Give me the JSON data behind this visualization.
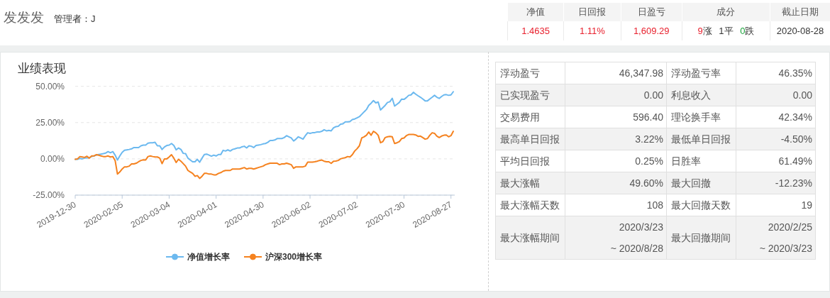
{
  "chart_data": [
    {
      "type": "other",
      "title": "发发发",
      "subtitle": "管理者：J",
      "categories": [
        "净值",
        "日回报",
        "日盈亏",
        "成分",
        "截止日期"
      ],
      "value_labels": [
        "1.4635",
        "1.11%",
        "1,609.29",
        "9涨 1平 0跌",
        "2020-08-28"
      ]
    },
    {
      "type": "line",
      "title": "业绩表现",
      "categories": [
        "2019-12-30",
        null,
        null,
        null,
        null,
        null,
        null,
        null,
        null,
        null,
        null,
        null,
        null,
        null,
        null,
        null,
        null,
        null,
        null,
        null,
        "2020-02-05",
        null,
        null,
        null,
        null,
        null,
        null,
        null,
        null,
        null,
        null,
        null,
        null,
        null,
        null,
        null,
        null,
        null,
        null,
        null,
        "2020-03-04",
        null,
        null,
        null,
        null,
        null,
        null,
        null,
        null,
        null,
        null,
        null,
        null,
        null,
        null,
        null,
        null,
        null,
        null,
        null,
        "2020-04-01",
        null,
        null,
        null,
        null,
        null,
        null,
        null,
        null,
        null,
        null,
        null,
        null,
        null,
        null,
        null,
        null,
        null,
        null,
        null,
        "2020-04-30",
        null,
        null,
        null,
        null,
        null,
        null,
        null,
        null,
        null,
        null,
        null,
        null,
        null,
        null,
        null,
        null,
        null,
        null,
        null,
        "2020-06-02",
        null,
        null,
        null,
        null,
        null,
        null,
        null,
        null,
        null,
        null,
        null,
        null,
        null,
        null,
        null,
        null,
        null,
        null,
        null,
        "2020-07-02",
        null,
        null,
        null,
        null,
        null,
        null,
        null,
        null,
        null,
        null,
        null,
        null,
        null,
        null,
        null,
        null,
        null,
        null,
        null,
        "2020-07-30",
        null,
        null,
        null,
        null,
        null,
        null,
        null,
        null,
        null,
        null,
        null,
        null,
        null,
        null,
        null,
        null,
        null,
        null,
        null,
        "2020-08-27",
        null
      ],
      "ylim": [
        -25,
        50
      ],
      "yticks": [
        {
          "value": -25,
          "label": "-25.00%"
        },
        {
          "value": 0,
          "label": "0.00%"
        },
        {
          "value": 25,
          "label": "25.00%"
        },
        {
          "value": 50,
          "label": "50.00%"
        }
      ],
      "grid": "y",
      "legend": "bottom",
      "series": [
        {
          "name": "净值增长率",
          "color": "#6cb9ef",
          "values": [
            -0.3,
            -0.3,
            0.3,
            0,
            0.5,
            0.7,
            0.8,
            1.6,
            2,
            2.6,
            3,
            3.3,
            3.6,
            4,
            5,
            4.2,
            5,
            2.6,
            -0.8,
            2,
            4.5,
            5.9,
            6.2,
            6.5,
            6.9,
            7.8,
            7.8,
            7.8,
            9,
            9.5,
            9.5,
            10.8,
            11.1,
            11.1,
            11.4,
            9,
            9,
            6.5,
            8.2,
            9.2,
            9.5,
            10.6,
            9.2,
            6.2,
            7.5,
            6.5,
            3.8,
            3.6,
            0.5,
            -0.8,
            -2,
            -2,
            -0.3,
            -2.3,
            0.5,
            3,
            3.3,
            2.6,
            1.8,
            2.6,
            2,
            3,
            3,
            5.9,
            5.4,
            6.2,
            5.4,
            6.5,
            6.9,
            7.5,
            7.5,
            8.3,
            8.7,
            7.5,
            9,
            8.7,
            7.8,
            9.2,
            9.5,
            9.8,
            10.3,
            10.6,
            11.4,
            12.7,
            12.7,
            13,
            14,
            14,
            14,
            14.7,
            16,
            15.2,
            14.4,
            12.3,
            13.6,
            15.2,
            14.4,
            13.6,
            16,
            18,
            17.6,
            18,
            18.1,
            18.5,
            18.5,
            19,
            20.1,
            19.3,
            19.6,
            19.3,
            21.4,
            22.2,
            22.5,
            23.9,
            24.2,
            25.5,
            25.5,
            25.8,
            27.1,
            27.5,
            28.3,
            29.1,
            30.7,
            32.4,
            34,
            36.9,
            38.4,
            40.2,
            38.6,
            39.2,
            33.7,
            35.3,
            36.9,
            38.9,
            39.4,
            41.8,
            36.4,
            37.6,
            38.9,
            41.2,
            41,
            42.2,
            43.8,
            44.1,
            45.9,
            44.6,
            43.5,
            42.5,
            41.3,
            40,
            40,
            41.3,
            42.5,
            43.8,
            42.5,
            41.7,
            43,
            44.1,
            44.3,
            43.8,
            44.1,
            46.3
          ]
        },
        {
          "name": "沪深300增长率",
          "color": "#f5821f",
          "values": [
            -0.3,
            0,
            1.6,
            1.3,
            1,
            1.8,
            0.5,
            2,
            2,
            2.9,
            2.5,
            2,
            1.6,
            1.6,
            2,
            1.3,
            1.6,
            -1.1,
            -10.5,
            -9,
            -7,
            -5.5,
            -5.5,
            -5,
            -3.5,
            -3.5,
            -3,
            -2,
            -1.1,
            -0.7,
            -0.8,
            1.6,
            2,
            1.6,
            1.3,
            1.3,
            0.5,
            -3.3,
            0,
            0,
            1.3,
            2.9,
            0.5,
            -2.5,
            -0.3,
            -1.6,
            -3.3,
            -5,
            -8,
            -9,
            -10,
            -12,
            -11.5,
            -13.5,
            -12,
            -10,
            -10,
            -10.5,
            -10.5,
            -11,
            -11,
            -10,
            -9.5,
            -8.5,
            -8,
            -8,
            -8,
            -7,
            -7,
            -7,
            -7,
            -6.5,
            -6,
            -7,
            -6.5,
            -6.5,
            -7,
            -6.5,
            -6,
            -5.5,
            -5,
            -4,
            -3.5,
            -3,
            -3,
            -3,
            -3,
            -4,
            -3.5,
            -3.5,
            -3,
            -3.5,
            -4,
            -6.5,
            -5.5,
            -5.5,
            -5.5,
            -5.5,
            -5,
            -2.3,
            -2.3,
            -2.3,
            -2,
            -1.6,
            -1.1,
            -0.8,
            -1.6,
            -2,
            -2,
            -3.1,
            -1.6,
            -1.5,
            -1.1,
            0,
            0.5,
            0.8,
            1.6,
            1.3,
            2.9,
            5.4,
            7,
            9,
            14.4,
            15.2,
            16.3,
            18.5,
            16.3,
            19,
            18,
            16.3,
            11.1,
            11.9,
            14.7,
            15.2,
            15.5,
            15.2,
            10.6,
            11.1,
            11.9,
            14,
            14.4,
            16,
            16.8,
            16.8,
            16.8,
            16.5,
            15.5,
            15.7,
            14.7,
            13.6,
            14,
            16.3,
            18,
            17.6,
            15.7,
            14.7,
            15.7,
            16.3,
            16.5,
            15.2,
            16,
            19
          ]
        }
      ]
    },
    {
      "type": "other",
      "categories": [
        "浮动盈亏",
        "浮动盈亏率",
        "已实现盈亏",
        "利息收入",
        "交易费用",
        "理论换手率",
        "最高单日回报",
        "最低单日回报",
        "平均日回报",
        "日胜率",
        "最大涨幅",
        "最大回撤",
        "最大涨幅天数",
        "最大回撤天数",
        "最大涨幅期间",
        "最大回撤期间"
      ],
      "value_labels": [
        "46,347.98",
        "46.35%",
        "0.00",
        "0.00",
        "596.40",
        "42.34%",
        "3.22%",
        "-4.50%",
        "0.25%",
        "61.49%",
        "49.60%",
        "-12.23%",
        "108",
        "19",
        "2020/3/23\n~ 2020/8/28",
        "2020/2/25\n~ 2020/3/23"
      ]
    }
  ]
}
